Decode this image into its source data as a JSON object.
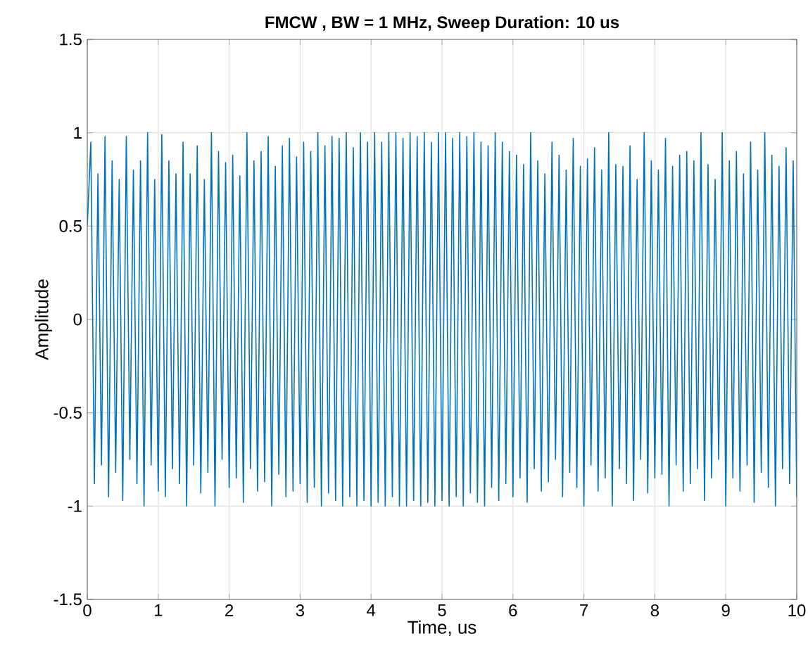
{
  "chart_data": {
    "type": "line",
    "title": "FMCW , BW = 1 MHz, Sweep Duration: 10 us",
    "xlabel": "Time, us",
    "ylabel": "Amplitude",
    "xlim": [
      0,
      10
    ],
    "ylim": [
      -1.5,
      1.5
    ],
    "xticks": [
      0,
      1,
      2,
      3,
      4,
      5,
      6,
      7,
      8,
      9,
      10
    ],
    "yticks": [
      -1.5,
      -1,
      -0.5,
      0,
      0.5,
      1,
      1.5
    ],
    "grid": true,
    "color": "#0072bd",
    "x": [
      0,
      0.05,
      0.1,
      0.15,
      0.2,
      0.25,
      0.3,
      0.35,
      0.4,
      0.45,
      0.5,
      0.55,
      0.6,
      0.65,
      0.7,
      0.75,
      0.8,
      0.85,
      0.9,
      0.95,
      1,
      1.05,
      1.1,
      1.15,
      1.2,
      1.25,
      1.3,
      1.35,
      1.4,
      1.45,
      1.5,
      1.55,
      1.6,
      1.65,
      1.7,
      1.75,
      1.8,
      1.85,
      1.9,
      1.95,
      2,
      2.05,
      2.1,
      2.15,
      2.2,
      2.25,
      2.3,
      2.35,
      2.4,
      2.45,
      2.5,
      2.55,
      2.6,
      2.65,
      2.7,
      2.75,
      2.8,
      2.85,
      2.9,
      2.95,
      3,
      3.05,
      3.1,
      3.15,
      3.2,
      3.25,
      3.3,
      3.35,
      3.4,
      3.45,
      3.5,
      3.55,
      3.6,
      3.65,
      3.7,
      3.75,
      3.8,
      3.85,
      3.9,
      3.95,
      4,
      4.05,
      4.1,
      4.15,
      4.2,
      4.25,
      4.3,
      4.35,
      4.4,
      4.45,
      4.5,
      4.55,
      4.6,
      4.65,
      4.7,
      4.75,
      4.8,
      4.85,
      4.9,
      4.95,
      5,
      5.05,
      5.1,
      5.15,
      5.2,
      5.25,
      5.3,
      5.35,
      5.4,
      5.45,
      5.5,
      5.55,
      5.6,
      5.65,
      5.7,
      5.75,
      5.8,
      5.85,
      5.9,
      5.95,
      6,
      6.05,
      6.1,
      6.15,
      6.2,
      6.25,
      6.3,
      6.35,
      6.4,
      6.45,
      6.5,
      6.55,
      6.6,
      6.65,
      6.7,
      6.75,
      6.8,
      6.85,
      6.9,
      6.95,
      7,
      7.05,
      7.1,
      7.15,
      7.2,
      7.25,
      7.3,
      7.35,
      7.4,
      7.45,
      7.5,
      7.55,
      7.6,
      7.65,
      7.7,
      7.75,
      7.8,
      7.85,
      7.9,
      7.95,
      8,
      8.05,
      8.1,
      8.15,
      8.2,
      8.25,
      8.3,
      8.35,
      8.4,
      8.45,
      8.5,
      8.55,
      8.6,
      8.65,
      8.7,
      8.75,
      8.8,
      8.85,
      8.9,
      8.95,
      9,
      9.05,
      9.1,
      9.15,
      9.2,
      9.25,
      9.3,
      9.35,
      9.4,
      9.45,
      9.5,
      9.55,
      9.6,
      9.65,
      9.7,
      9.75,
      9.8,
      9.85,
      9.9,
      9.95,
      10
    ],
    "values": [
      0.5,
      0.95,
      -0.88,
      0.78,
      -0.78,
      0.98,
      -0.95,
      0.85,
      -0.82,
      0.75,
      -0.97,
      0.98,
      -0.75,
      0.8,
      -0.88,
      0.85,
      -1.0,
      1.0,
      -0.78,
      0.75,
      -0.92,
      0.99,
      -0.95,
      0.85,
      -0.8,
      0.78,
      -0.88,
      0.95,
      -1.0,
      0.78,
      -0.78,
      0.93,
      -0.93,
      0.75,
      -0.82,
      1.0,
      -1.0,
      0.9,
      -0.75,
      0.84,
      -0.9,
      0.88,
      -0.85,
      0.77,
      -0.98,
      1.0,
      -0.8,
      0.85,
      -0.92,
      0.9,
      -0.87,
      0.98,
      -1.0,
      0.82,
      -0.83,
      0.93,
      -0.95,
      0.97,
      -0.92,
      0.87,
      -0.88,
      0.95,
      -0.98,
      0.9,
      -0.9,
      1.0,
      -1.0,
      0.93,
      -0.93,
      0.98,
      -0.97,
      0.97,
      -1.0,
      1.0,
      -0.95,
      0.92,
      -1.0,
      1.0,
      -0.97,
      0.95,
      -1.0,
      1.0,
      -0.98,
      0.95,
      -1.0,
      1.0,
      -0.95,
      1.0,
      -1.0,
      0.97,
      -1.0,
      1.0,
      -0.97,
      0.98,
      -1.0,
      1.0,
      -0.98,
      0.95,
      -1.0,
      1.0,
      -0.97,
      1.0,
      -1.0,
      0.97,
      -0.95,
      1.0,
      -1.0,
      0.98,
      -0.93,
      1.0,
      -0.98,
      0.95,
      -1.0,
      0.93,
      -0.9,
      1.0,
      -0.97,
      0.95,
      -0.88,
      0.9,
      -0.95,
      0.88,
      -0.85,
      0.83,
      -0.98,
      1.0,
      -0.8,
      0.85,
      -0.92,
      0.78,
      -0.87,
      0.95,
      -0.75,
      0.88,
      -0.95,
      0.8,
      -0.82,
      0.97,
      -0.9,
      0.82,
      -1.0,
      0.86,
      -0.78,
      0.92,
      -0.92,
      0.8,
      -0.85,
      1.0,
      -1.0,
      0.83,
      -0.8,
      0.82,
      -0.88,
      0.93,
      -0.97,
      0.75,
      -0.75,
      1.0,
      -0.93,
      0.85,
      -0.85,
      0.8,
      -0.83,
      0.97,
      -1.0,
      0.82,
      -0.78,
      0.88,
      -0.92,
      0.9,
      -0.88,
      0.85,
      -0.8,
      1.0,
      -0.97,
      0.83,
      -0.85,
      0.75,
      -0.75,
      1.0,
      -1.0,
      0.85,
      -0.85,
      0.9,
      -0.92,
      0.78,
      -0.78,
      0.95,
      -0.98,
      0.8,
      -0.82,
      1.0,
      -0.9,
      0.88,
      -1.0,
      0.82,
      -0.8,
      0.92,
      -0.88,
      0.85,
      -0.95
    ]
  }
}
